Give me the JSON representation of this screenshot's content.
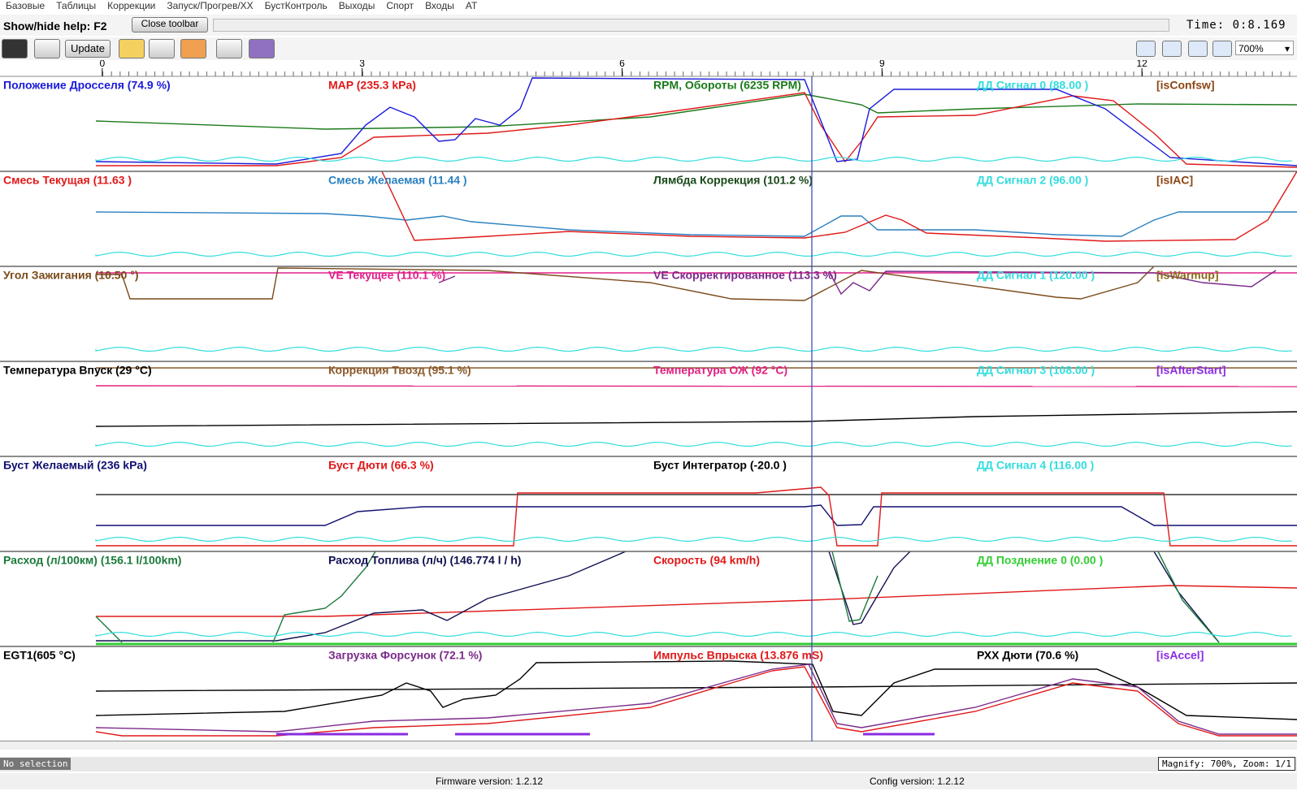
{
  "menu": [
    "Базовые",
    "Таблицы",
    "Коррекции",
    "Запуск/Прогрев/ХХ",
    "БустКонтроль",
    "Выходы",
    "Спорт",
    "Входы",
    "AT"
  ],
  "toolbar": {
    "help": "Show/hide help: F2",
    "close_button": "Close toolbar",
    "time": "Time: 0:8.169",
    "update_button": "Update",
    "zoom_select": "700%"
  },
  "time_axis": {
    "xlim": [
      -1.18,
      13.79
    ],
    "ticks": [
      0,
      3,
      6,
      9,
      12
    ]
  },
  "panels": [
    {
      "labels": [
        {
          "text": "Положение Дросселя (74.9 %)",
          "color": "#1a1adb"
        },
        {
          "text": "MAP (235.3 kPa)",
          "color": "#e01818"
        },
        {
          "text": "RPM, Обороты (6235 RPM)",
          "color": "#1a7a1a"
        },
        {
          "text": "ДД Сигнал 0 (88.00 )",
          "color": "#33dddd"
        },
        {
          "text": "[isConfsw]",
          "color": "#8b4513"
        }
      ]
    },
    {
      "labels": [
        {
          "text": "Смесь Текущая (11.63 )",
          "color": "#e01818"
        },
        {
          "text": "Смесь Желаемая (11.44 )",
          "color": "#2a80c0"
        },
        {
          "text": "Лямбда Коррекция (101.2 %)",
          "color": "#1a4a1a"
        },
        {
          "text": "ДД Сигнал 2 (96.00 )",
          "color": "#33dddd"
        },
        {
          "text": "[isIAC]",
          "color": "#8b4513"
        }
      ]
    },
    {
      "labels": [
        {
          "text": "Угол Зажигания (10.50 °)",
          "color": "#7a4a1a"
        },
        {
          "text": "VE Текущее (110.1 %)",
          "color": "#e0208a"
        },
        {
          "text": "VE Скорректированное (113.3 %)",
          "color": "#7a2a8a"
        },
        {
          "text": "ДД Сигнал 1 (120.00 )",
          "color": "#33dddd"
        },
        {
          "text": "[isWarmup]",
          "color": "#8a6a1a"
        }
      ]
    },
    {
      "labels": [
        {
          "text": "Температура Впуск (29 °C)",
          "color": "#000000"
        },
        {
          "text": "Коррекция Твозд (95.1 %)",
          "color": "#8b5a2b"
        },
        {
          "text": "Температура ОЖ (92 °C)",
          "color": "#e02080"
        },
        {
          "text": "ДД Сигнал 3 (108.00 )",
          "color": "#33dddd"
        },
        {
          "text": "[isAfterStart]",
          "color": "#8a2be2"
        }
      ]
    },
    {
      "labels": [
        {
          "text": "Буст Желаемый (236 kPa)",
          "color": "#101070"
        },
        {
          "text": "Буст Дюти (66.3 %)",
          "color": "#e01818"
        },
        {
          "text": "Буст Интегратор (-20.0 )",
          "color": "#000000"
        },
        {
          "text": "ДД Сигнал 4 (116.00 )",
          "color": "#33dddd"
        }
      ]
    },
    {
      "labels": [
        {
          "text": "Расход (л/100км) (156.1 l/100km)",
          "color": "#1a7a3a"
        },
        {
          "text": "Расход Топлива (л/ч) (146.774 l / h)",
          "color": "#101050"
        },
        {
          "text": "Скорость (94 km/h)",
          "color": "#e01818"
        },
        {
          "text": "ДД Позднение 0 (0.00 )",
          "color": "#33cc33"
        }
      ]
    },
    {
      "labels": [
        {
          "text": "EGT1(605 °C)",
          "color": "#000000"
        },
        {
          "text": "Загрузка Форсунок (72.1 %)",
          "color": "#7a2a8a"
        },
        {
          "text": "Импульс Впрыска (13.876 mS)",
          "color": "#e01818"
        },
        {
          "text": "РХХ Дюти (70.6 %)",
          "color": "#000000"
        },
        {
          "text": "[isAccel]",
          "color": "#8a2be2"
        }
      ]
    }
  ],
  "status": {
    "selection": "No selection",
    "magnify": "Magnify: 700%, Zoom: 1/1",
    "firmware": "Firmware version: 1.2.12",
    "config": "Config version: 1.2.12"
  }
}
